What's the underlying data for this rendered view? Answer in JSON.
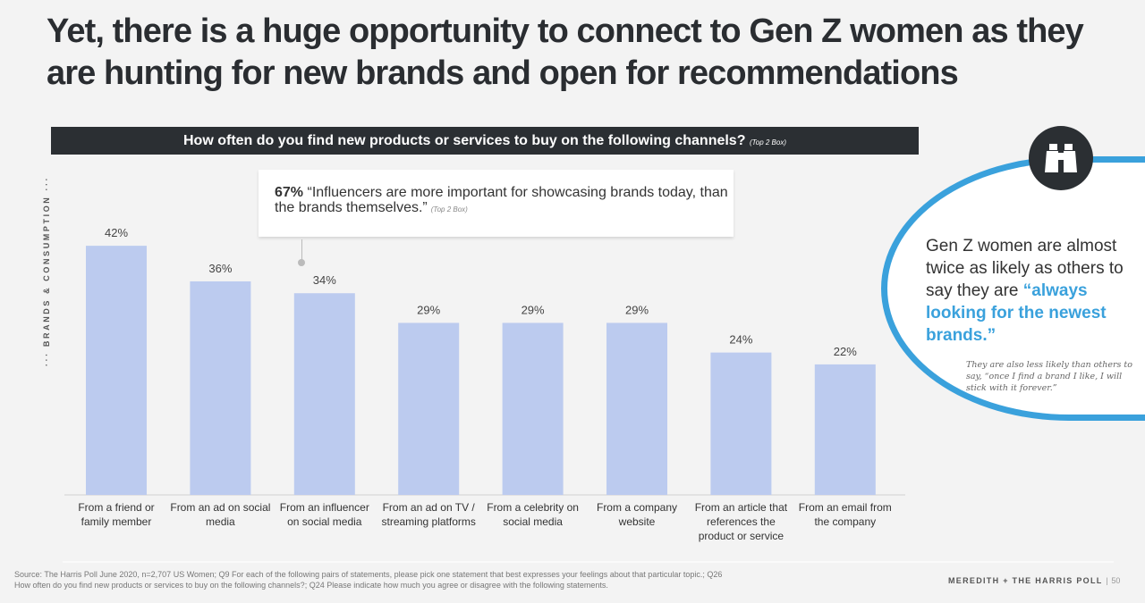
{
  "title": "Yet, there is a huge opportunity to connect to Gen Z women as they are hunting for new brands and open for recommendations",
  "question": {
    "text": "How often do you find new products or services to buy on the following channels?",
    "note": "(Top 2 Box)"
  },
  "side_label": "··· BRANDS & CONSUMPTION ···",
  "callout": {
    "stat": "67%",
    "text": "“Influencers are more important for showcasing brands today, than the brands themselves.”",
    "note": "(Top 2 Box)"
  },
  "circle": {
    "icon": "binoculars-icon",
    "text": "Gen Z women are almost twice as likely as others to say they are ",
    "highlight": "“always looking for the newest brands.”",
    "subtext": "They are also less likely than others to say, “once I find a brand I like, I will stick with it forever.”"
  },
  "footer": {
    "source": "Source: The Harris Poll June 2020, n=2,707 US Women; Q9 For each of the following pairs of statements, please pick one statement that best expresses your feelings about that particular topic.; Q26 How often do you find new products or services to buy on the following channels?; Q24 Please indicate how much you agree or disagree with the following statements.",
    "brand": "MEREDITH + THE HARRIS POLL",
    "page": "50"
  },
  "colors": {
    "bar": "#bccbef",
    "accent": "#3aa1dc",
    "dark": "#2b2f33"
  },
  "chart_data": {
    "type": "bar",
    "title": "How often do you find new products or services to buy on the following channels? (Top 2 Box)",
    "categories": [
      "From a friend or family member",
      "From an ad on social media",
      "From an influencer on social media",
      "From an ad on TV / streaming platforms",
      "From a celebrity on social media",
      "From a company website",
      "From an article that references the product or service",
      "From an email from the company"
    ],
    "values": [
      42,
      36,
      34,
      29,
      29,
      29,
      24,
      22
    ],
    "labels": [
      "42%",
      "36%",
      "34%",
      "29%",
      "29%",
      "29%",
      "24%",
      "22%"
    ],
    "ylim": [
      0,
      42
    ],
    "xlabel": "",
    "ylabel": "",
    "grid": false
  }
}
